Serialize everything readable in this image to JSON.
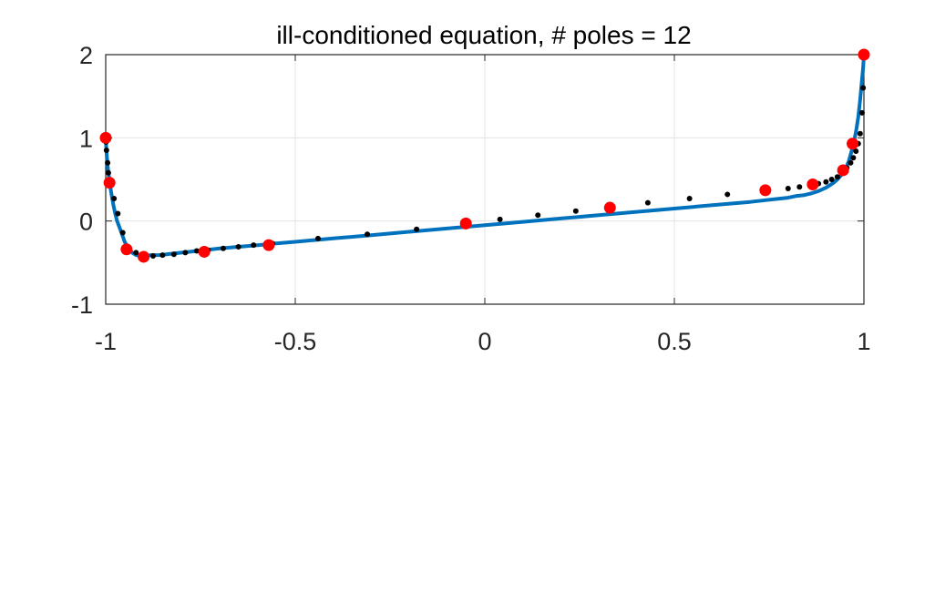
{
  "chart_data": {
    "type": "line",
    "title": "ill-conditioned equation, # poles = 12",
    "xlabel": "",
    "ylabel": "",
    "xlim": [
      -1,
      1
    ],
    "ylim": [
      -1,
      2
    ],
    "xticks": [
      -1,
      -0.5,
      0,
      0.5,
      1
    ],
    "xtick_labels": [
      "-1",
      "-0.5",
      "0",
      "0.5",
      "1"
    ],
    "yticks": [
      -1,
      0,
      1,
      2
    ],
    "ytick_labels": [
      "-1",
      "0",
      "1",
      "2"
    ],
    "grid": true,
    "line_color": "#0072BD",
    "small_marker_color": "#000000",
    "large_marker_color": "#FF0000",
    "series": [
      {
        "style": "line",
        "x": [
          -1.0,
          -0.998,
          -0.995,
          -0.99,
          -0.985,
          -0.98,
          -0.975,
          -0.97,
          -0.96,
          -0.95,
          -0.94,
          -0.93,
          -0.92,
          -0.91,
          -0.9,
          -0.88,
          -0.86,
          -0.84,
          -0.82,
          -0.8,
          -0.78,
          -0.76,
          -0.74,
          -0.72,
          -0.7,
          -0.65,
          -0.6,
          -0.55,
          -0.5,
          -0.4,
          -0.3,
          -0.2,
          -0.1,
          0.0,
          0.1,
          0.2,
          0.3,
          0.4,
          0.5,
          0.6,
          0.7,
          0.74,
          0.78,
          0.8,
          0.82,
          0.84,
          0.86,
          0.88,
          0.9,
          0.91,
          0.92,
          0.93,
          0.94,
          0.95,
          0.96,
          0.97,
          0.975,
          0.98,
          0.985,
          0.99,
          0.995,
          0.998,
          1.0
        ],
        "y": [
          1.0,
          0.84,
          0.66,
          0.47,
          0.33,
          0.2,
          0.09,
          0.0,
          -0.12,
          -0.25,
          -0.33,
          -0.38,
          -0.41,
          -0.42,
          -0.42,
          -0.41,
          -0.41,
          -0.4,
          -0.39,
          -0.38,
          -0.37,
          -0.36,
          -0.35,
          -0.34,
          -0.33,
          -0.31,
          -0.29,
          -0.27,
          -0.25,
          -0.21,
          -0.17,
          -0.13,
          -0.09,
          -0.05,
          -0.01,
          0.03,
          0.07,
          0.11,
          0.15,
          0.19,
          0.23,
          0.25,
          0.27,
          0.28,
          0.3,
          0.31,
          0.33,
          0.36,
          0.4,
          0.43,
          0.46,
          0.5,
          0.55,
          0.61,
          0.72,
          0.88,
          0.98,
          1.1,
          1.25,
          1.45,
          1.7,
          1.85,
          2.0
        ]
      },
      {
        "style": "small-markers",
        "x": [
          -0.999,
          -0.998,
          -0.995,
          -0.993,
          -0.986,
          -0.978,
          -0.968,
          -0.955,
          -0.94,
          -0.92,
          -0.9,
          -0.875,
          -0.85,
          -0.82,
          -0.79,
          -0.76,
          -0.73,
          -0.69,
          -0.65,
          -0.61,
          -0.56,
          -0.44,
          -0.31,
          -0.18,
          -0.05,
          0.04,
          0.14,
          0.24,
          0.33,
          0.43,
          0.54,
          0.64,
          0.74,
          0.8,
          0.83,
          0.86,
          0.88,
          0.9,
          0.915,
          0.93,
          0.945,
          0.955,
          0.965,
          0.972,
          0.979,
          0.985,
          0.99,
          0.995,
          0.998,
          1.0
        ],
        "y": [
          0.95,
          0.85,
          0.7,
          0.58,
          0.47,
          0.27,
          0.09,
          -0.14,
          -0.33,
          -0.38,
          -0.42,
          -0.42,
          -0.41,
          -0.4,
          -0.38,
          -0.36,
          -0.35,
          -0.33,
          -0.31,
          -0.29,
          -0.27,
          -0.21,
          -0.16,
          -0.1,
          -0.03,
          0.02,
          0.07,
          0.12,
          0.17,
          0.22,
          0.27,
          0.32,
          0.37,
          0.39,
          0.41,
          0.44,
          0.45,
          0.47,
          0.5,
          0.53,
          0.58,
          0.64,
          0.7,
          0.76,
          0.84,
          0.93,
          1.05,
          1.3,
          1.6,
          2.0
        ]
      },
      {
        "style": "large-markers",
        "x": [
          -1.0,
          -0.99,
          -0.945,
          -0.9,
          -0.74,
          -0.57,
          -0.05,
          0.33,
          0.74,
          0.865,
          0.945,
          0.97,
          1.0
        ],
        "y": [
          1.0,
          0.46,
          -0.34,
          -0.43,
          -0.37,
          -0.29,
          -0.03,
          0.16,
          0.37,
          0.44,
          0.61,
          0.93,
          2.0
        ]
      }
    ]
  }
}
